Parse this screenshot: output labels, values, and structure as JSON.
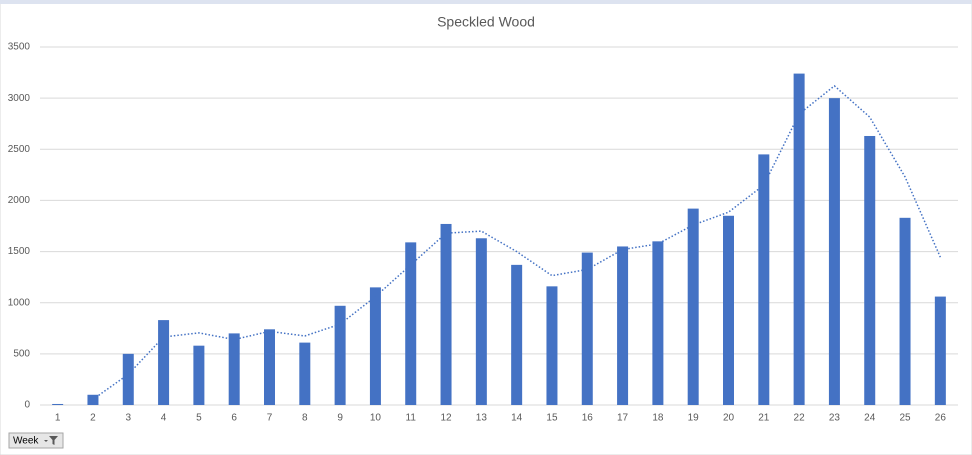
{
  "chart_data": {
    "type": "bar",
    "title": "Speckled Wood",
    "categories": [
      1,
      2,
      3,
      4,
      5,
      6,
      7,
      8,
      9,
      10,
      11,
      12,
      13,
      14,
      15,
      16,
      17,
      18,
      19,
      20,
      21,
      22,
      23,
      24,
      25,
      26
    ],
    "values": [
      10,
      100,
      500,
      830,
      580,
      700,
      740,
      610,
      970,
      1150,
      1590,
      1770,
      1630,
      1370,
      1160,
      1490,
      1550,
      1600,
      1920,
      1850,
      2450,
      3240,
      3000,
      2630,
      1830,
      1060
    ],
    "color": "#4472c4",
    "trend_values": [
      null,
      55,
      300,
      665,
      705,
      640,
      720,
      675,
      790,
      1060,
      1370,
      1680,
      1700,
      1500,
      1265,
      1325,
      1520,
      1575,
      1760,
      1885,
      2150,
      2845,
      3120,
      2815,
      2230,
      1445
    ],
    "trend_color": "#4472c4",
    "ylim": [
      0,
      3500
    ],
    "yticks": [
      0,
      500,
      1000,
      1500,
      2000,
      2500,
      3000,
      3500
    ],
    "grid": true
  },
  "pivot_field": "Week"
}
